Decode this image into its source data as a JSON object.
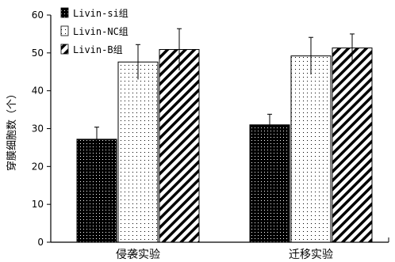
{
  "chart_data": {
    "type": "bar",
    "title": "",
    "xlabel": "",
    "ylabel": "穿膜细胞数（个）",
    "ylim": [
      0,
      60
    ],
    "yticks": [
      0,
      10,
      20,
      30,
      40,
      50,
      60
    ],
    "grid": false,
    "legend_position": "top-left",
    "categories": [
      "侵袭实验",
      "迁移实验"
    ],
    "series": [
      {
        "name": "Livin-si组",
        "pattern": "dense-dots",
        "values": [
          27.2,
          31.0
        ],
        "errors": [
          3.2,
          2.8
        ]
      },
      {
        "name": "Livin-NC组",
        "pattern": "sparse-dots",
        "values": [
          47.6,
          49.2
        ],
        "errors": [
          4.6,
          4.9
        ]
      },
      {
        "name": "Livin-B组",
        "pattern": "diagonal-stripes",
        "values": [
          50.9,
          51.3
        ],
        "errors": [
          5.5,
          3.7
        ]
      }
    ]
  }
}
